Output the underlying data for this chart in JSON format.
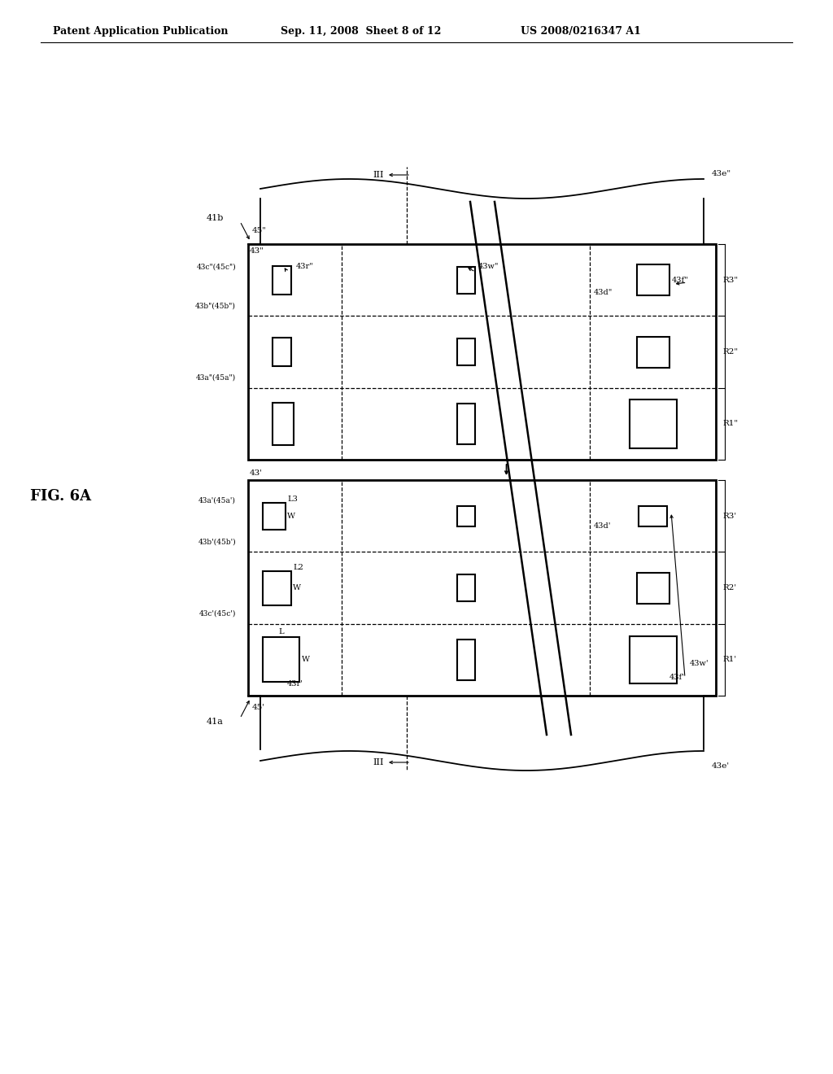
{
  "title_left": "Patent Application Publication",
  "title_mid": "Sep. 11, 2008  Sheet 8 of 12",
  "title_right": "US 2008/0216347 A1",
  "fig_label": "FIG. 6A",
  "bg_color": "#ffffff",
  "line_color": "#000000"
}
